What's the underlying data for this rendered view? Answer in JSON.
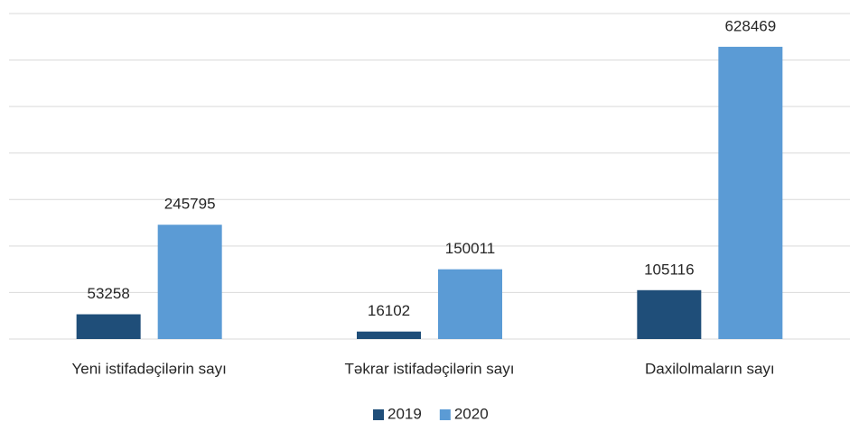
{
  "chart_data": {
    "type": "bar",
    "categories": [
      "Yeni istifadəçilərin sayı",
      "Təkrar istifadəçilərin sayı",
      "Daxilolmaların sayı"
    ],
    "series": [
      {
        "name": "2019",
        "color": "#1f4e79",
        "values": [
          53258,
          16102,
          105116
        ]
      },
      {
        "name": "2020",
        "color": "#5b9bd5",
        "values": [
          245795,
          150011,
          628469
        ]
      }
    ],
    "ylim": [
      0,
      700000
    ],
    "yticks": [
      0,
      100000,
      200000,
      300000,
      400000,
      500000,
      600000,
      700000
    ],
    "grid": true,
    "show_ytick_labels": false,
    "data_labels": true,
    "legend": "bottom"
  }
}
